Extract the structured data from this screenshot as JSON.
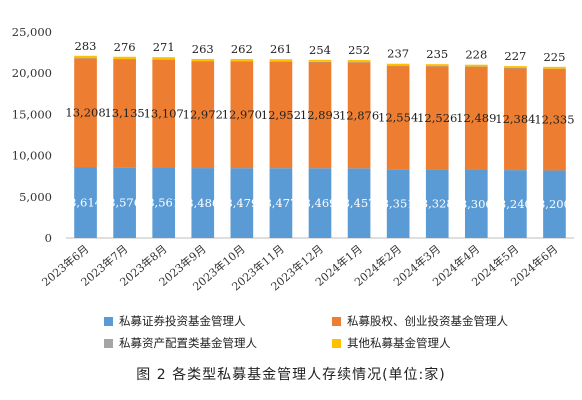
{
  "chart_data": {
    "type": "bar",
    "stacked": true,
    "categories": [
      "2023年6月",
      "2023年7月",
      "2023年8月",
      "2023年9月",
      "2023年10月",
      "2023年11月",
      "2023年12月",
      "2024年1月",
      "2024年2月",
      "2024年3月",
      "2024年4月",
      "2024年5月",
      "2024年6月"
    ],
    "series": [
      {
        "name": "私募证券投资基金管理人",
        "color": "#5B9BD5",
        "values": [
          8614,
          8576,
          8561,
          8486,
          8479,
          8477,
          8469,
          8457,
          8351,
          8328,
          8306,
          8240,
          8200
        ],
        "labels": [
          "8,614",
          "8,576",
          "8,561",
          "8,486",
          "8,479",
          "8,477",
          "8,469",
          "8,457",
          "8,351",
          "8,328",
          "8,306",
          "8,240",
          "8,200"
        ]
      },
      {
        "name": "私募股权、创业投资基金管理人",
        "color": "#ED7D31",
        "values": [
          13208,
          13135,
          13107,
          12972,
          12970,
          12952,
          12893,
          12876,
          12554,
          12526,
          12489,
          12384,
          12335
        ],
        "labels": [
          "13,208",
          "13,135",
          "13,107",
          "12,972",
          "12,970",
          "12,952",
          "12,893",
          "12,876",
          "12,554",
          "12,526",
          "12,489",
          "12,384",
          "12,335"
        ]
      },
      {
        "name": "私募资产配置类基金管理人",
        "color": "#A5A5A5",
        "values": [
          9,
          9,
          9,
          9,
          9,
          9,
          9,
          9,
          9,
          9,
          9,
          9,
          9
        ],
        "labels": []
      },
      {
        "name": "其他私募基金管理人",
        "color": "#FFC000",
        "values": [
          283,
          276,
          271,
          263,
          262,
          261,
          254,
          252,
          237,
          235,
          228,
          227,
          225
        ],
        "labels": [
          "283",
          "276",
          "271",
          "263",
          "262",
          "261",
          "254",
          "252",
          "237",
          "235",
          "228",
          "227",
          "225"
        ]
      }
    ],
    "ylim": [
      0,
      25000
    ],
    "yticks": [
      0,
      5000,
      10000,
      15000,
      20000,
      25000
    ],
    "ytick_labels": [
      "0",
      "5,000",
      "10,000",
      "15,000",
      "20,000",
      "25,000"
    ],
    "legend_position": "bottom",
    "grid": false
  },
  "caption": "图 2  各类型私募基金管理人存续情况(单位:家)"
}
